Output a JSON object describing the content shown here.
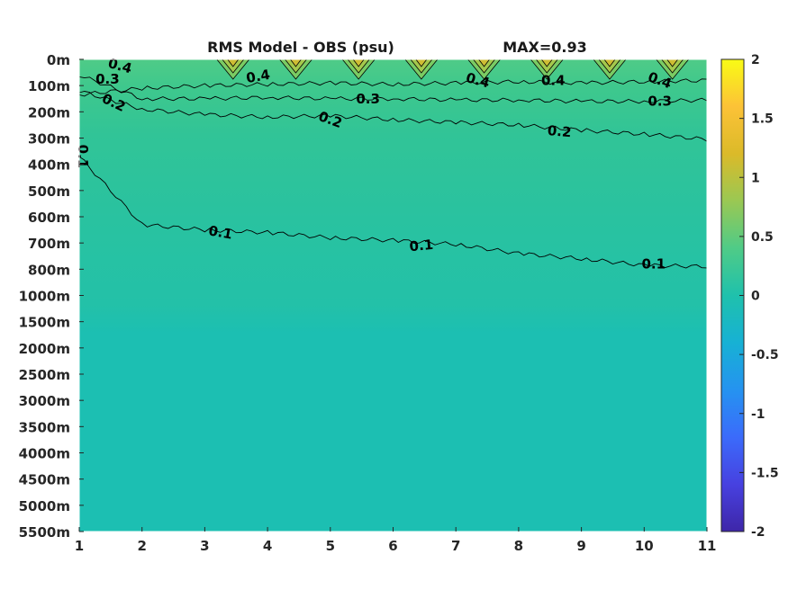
{
  "chart_data": {
    "type": "heatmap",
    "title": "RMS Model - OBS (psu)",
    "max_label": "MAX=0.93",
    "x": [
      1,
      2,
      3,
      4,
      5,
      6,
      7,
      8,
      9,
      10,
      11
    ],
    "xlim": [
      1,
      11
    ],
    "y_ticks": [
      "0m",
      "100m",
      "200m",
      "300m",
      "400m",
      "500m",
      "600m",
      "700m",
      "800m",
      "1000m",
      "1500m",
      "2000m",
      "2500m",
      "3000m",
      "3500m",
      "4000m",
      "4500m",
      "5000m",
      "5500m"
    ],
    "colorbar": {
      "limits": [
        -2,
        2
      ],
      "ticks": [
        "2",
        "1.5",
        "1",
        "0.5",
        "0",
        "-0.5",
        "-1",
        "-1.5",
        "-2"
      ],
      "tick_values": [
        2,
        1.5,
        1,
        0.5,
        0,
        -0.5,
        -1,
        -1.5,
        -2
      ],
      "colormap": [
        "#3e26a8",
        "#4741e0",
        "#3b6bfb",
        "#2593f0",
        "#17b1d4",
        "#1fc1ac",
        "#4fcb87",
        "#9ac853",
        "#dbba29",
        "#fcc237",
        "#f9fb15"
      ]
    },
    "contour_levels": [
      0.1,
      0.2,
      0.3,
      0.4
    ],
    "contours": [
      {
        "level": 0.4,
        "label": "0.4",
        "depth_index": [
          1.35,
          1.1,
          1.0,
          0.95,
          0.9,
          0.95,
          0.9,
          0.85,
          0.9,
          0.85,
          0.8
        ]
      },
      {
        "level": 0.3,
        "label": "0.3",
        "depth_index": [
          0.6,
          1.5,
          1.5,
          1.45,
          1.5,
          1.5,
          1.55,
          1.55,
          1.6,
          1.6,
          1.55
        ]
      },
      {
        "level": 0.2,
        "label": "0.2",
        "depth_index": [
          1.2,
          1.9,
          2.1,
          2.2,
          2.15,
          2.3,
          2.4,
          2.5,
          2.7,
          2.85,
          3.05
        ]
      },
      {
        "level": 0.1,
        "label": "0.1",
        "depth_index": [
          3.7,
          6.3,
          6.5,
          6.6,
          6.8,
          6.9,
          7.05,
          7.4,
          7.6,
          7.85,
          7.9
        ]
      }
    ],
    "contour_labels": [
      {
        "text": "0.4",
        "x": 1.65,
        "depth_index": 0.25,
        "rotate": 15
      },
      {
        "text": "0.3",
        "x": 1.45,
        "depth_index": 0.75,
        "rotate": 0
      },
      {
        "text": "0.2",
        "x": 1.55,
        "depth_index": 1.65,
        "rotate": 25
      },
      {
        "text": "0.1",
        "x": 1.06,
        "depth_index": 3.7,
        "rotate": 90
      },
      {
        "text": "0.4",
        "x": 3.85,
        "depth_index": 0.65,
        "rotate": -10
      },
      {
        "text": "0.3",
        "x": 5.6,
        "depth_index": 1.5,
        "rotate": 0
      },
      {
        "text": "0.2",
        "x": 5.0,
        "depth_index": 2.3,
        "rotate": 20
      },
      {
        "text": "0.1",
        "x": 3.25,
        "depth_index": 6.6,
        "rotate": 10
      },
      {
        "text": "0.4",
        "x": 7.35,
        "depth_index": 0.8,
        "rotate": 15
      },
      {
        "text": "0.4",
        "x": 8.55,
        "depth_index": 0.8,
        "rotate": 0
      },
      {
        "text": "0.4",
        "x": 10.25,
        "depth_index": 0.8,
        "rotate": 20
      },
      {
        "text": "0.3",
        "x": 10.25,
        "depth_index": 1.6,
        "rotate": 0
      },
      {
        "text": "0.2",
        "x": 8.65,
        "depth_index": 2.75,
        "rotate": 5
      },
      {
        "text": "0.1",
        "x": 6.45,
        "depth_index": 7.1,
        "rotate": -5
      },
      {
        "text": "0.1",
        "x": 10.15,
        "depth_index": 7.8,
        "rotate": 0
      }
    ],
    "surface_peaks_x": [
      3.45,
      4.45,
      5.45,
      6.45,
      7.45,
      8.45,
      9.45,
      10.45
    ]
  }
}
